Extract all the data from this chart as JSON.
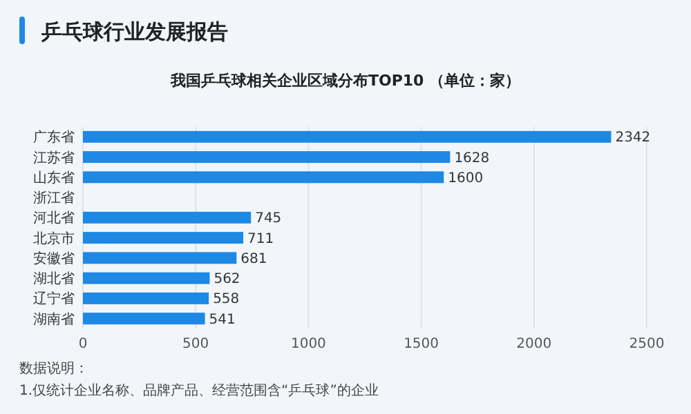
{
  "chart_data": {
    "type": "bar",
    "orientation": "horizontal",
    "title": "乒乓球行业发展报告",
    "subtitle": "我国乒乓球相关企业区域分布TOP10 （单位：家）",
    "categories": [
      "广东省",
      "江苏省",
      "山东省",
      "浙江省",
      "河北省",
      "北京市",
      "安徽省",
      "湖北省",
      "辽宁省",
      "湖南省"
    ],
    "values": [
      2342,
      1628,
      1600,
      null,
      745,
      711,
      681,
      562,
      558,
      541
    ],
    "color": "#1e88e5",
    "xlim": [
      0,
      2500
    ],
    "xticks": [
      0,
      500,
      1000,
      1500,
      2000,
      2500
    ],
    "grid": "x",
    "data_labels": true,
    "annotations": [
      "数据说明：",
      "1.仅统计企业名称、品牌产品、经营范围含“乒乓球”的企业"
    ]
  }
}
